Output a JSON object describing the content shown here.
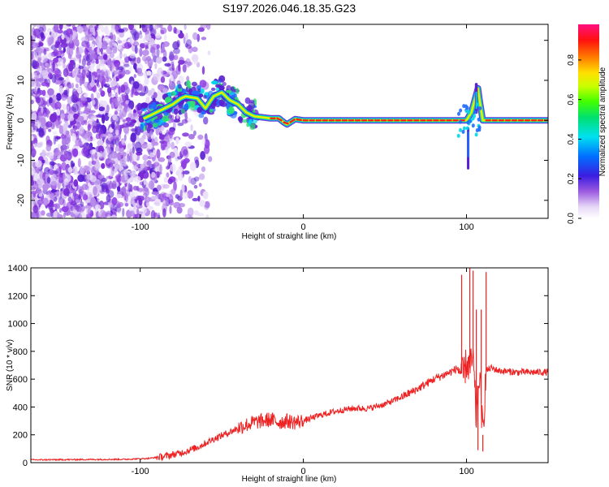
{
  "title": "S197.2026.046.18.35.G23",
  "chart_data": [
    {
      "type": "heatmap",
      "xlabel": "Height of straight line (km)",
      "ylabel": "Frequency (Hz)",
      "xlim": [
        -167,
        150
      ],
      "ylim": [
        -24.5,
        24
      ],
      "xticks": [
        -100,
        0,
        100
      ],
      "yticks": [
        -20,
        -10,
        0,
        10,
        20
      ],
      "ridge": [
        [
          -167,
          0
        ],
        [
          -100,
          0
        ],
        [
          -95,
          1
        ],
        [
          -90,
          2
        ],
        [
          -85,
          3
        ],
        [
          -80,
          4
        ],
        [
          -75,
          5.5
        ],
        [
          -72,
          6
        ],
        [
          -65,
          5.5
        ],
        [
          -60,
          3
        ],
        [
          -55,
          6
        ],
        [
          -50,
          7
        ],
        [
          -45,
          5
        ],
        [
          -40,
          4
        ],
        [
          -35,
          2
        ],
        [
          -30,
          1
        ],
        [
          -20,
          0.5
        ],
        [
          -15,
          0.5
        ],
        [
          -12,
          -0.5
        ],
        [
          -10,
          -1
        ],
        [
          -5,
          0.3
        ],
        [
          0,
          0
        ],
        [
          100,
          0
        ],
        [
          103,
          2
        ],
        [
          105,
          5
        ],
        [
          107,
          8
        ],
        [
          108,
          5
        ],
        [
          110,
          0
        ],
        [
          150,
          0
        ]
      ],
      "colorbar": {
        "label": "Normalized spectral amplitude",
        "ticks": [
          "0.0",
          "0.2",
          "0.4",
          "0.6",
          "0.8"
        ],
        "range": [
          0,
          0.98
        ]
      }
    },
    {
      "type": "line",
      "xlabel": "Height of straight line (km)",
      "ylabel": "SNR (10 * v/v)",
      "xlim": [
        -167,
        150
      ],
      "ylim": [
        0,
        1400
      ],
      "xticks": [
        -100,
        0,
        100
      ],
      "yticks": [
        0,
        200,
        400,
        600,
        800,
        1000,
        1200,
        1400
      ],
      "series": [
        {
          "name": "SNR",
          "color": "#ee2222",
          "x": [
            -167,
            -140,
            -110,
            -95,
            -85,
            -75,
            -65,
            -55,
            -45,
            -38,
            -30,
            -25,
            -20,
            -15,
            -10,
            -5,
            0,
            5,
            10,
            20,
            30,
            40,
            50,
            60,
            70,
            80,
            90,
            95,
            98,
            100,
            102,
            104,
            106,
            108,
            110,
            112,
            115,
            120,
            130,
            140,
            150
          ],
          "values": [
            20,
            22,
            24,
            30,
            45,
            70,
            110,
            170,
            220,
            260,
            290,
            300,
            310,
            290,
            300,
            290,
            300,
            320,
            340,
            370,
            390,
            390,
            420,
            470,
            530,
            600,
            650,
            680,
            620,
            720,
            680,
            750,
            300,
            650,
            200,
            660,
            680,
            660,
            650,
            650,
            650
          ]
        }
      ],
      "spikes": [
        {
          "x": 97,
          "y": 1350
        },
        {
          "x": 102,
          "y": 1400
        },
        {
          "x": 104,
          "y": 1380
        },
        {
          "x": 106,
          "y": 1100
        },
        {
          "x": 107,
          "y": 90
        },
        {
          "x": 109,
          "y": 1100
        },
        {
          "x": 110,
          "y": 80
        },
        {
          "x": 112,
          "y": 1370
        }
      ]
    }
  ],
  "colors": {
    "line": "#ee2222",
    "noise": "#7a2bd6"
  }
}
